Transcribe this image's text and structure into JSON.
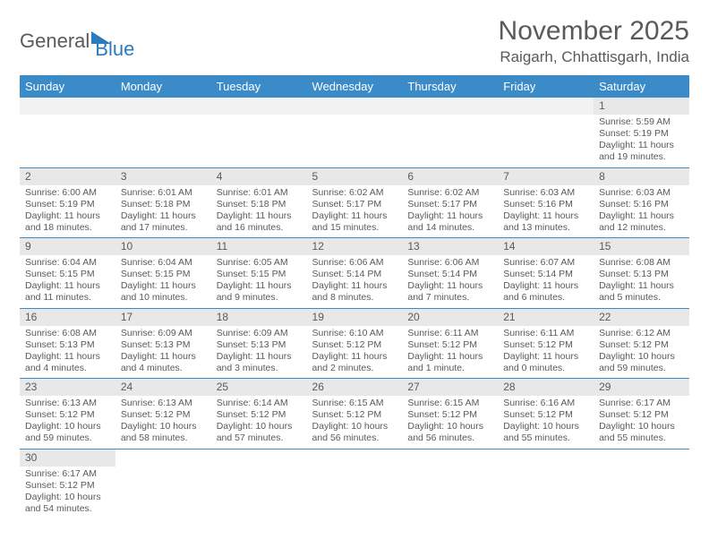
{
  "logo": {
    "part1": "General",
    "part2": "Blue"
  },
  "title": "November 2025",
  "location": "Raigarh, Chhattisgarh, India",
  "colors": {
    "header_bg": "#3b8bc9",
    "header_text": "#ffffff",
    "daynum_bg": "#e8e8e8",
    "text": "#5a5a5a",
    "rule": "#3b8bc9",
    "brand": "#2b7bbf"
  },
  "day_headers": [
    "Sunday",
    "Monday",
    "Tuesday",
    "Wednesday",
    "Thursday",
    "Friday",
    "Saturday"
  ],
  "weeks": [
    [
      null,
      null,
      null,
      null,
      null,
      null,
      {
        "n": "1",
        "sunrise": "5:59 AM",
        "sunset": "5:19 PM",
        "daylight": "11 hours and 19 minutes."
      }
    ],
    [
      {
        "n": "2",
        "sunrise": "6:00 AM",
        "sunset": "5:19 PM",
        "daylight": "11 hours and 18 minutes."
      },
      {
        "n": "3",
        "sunrise": "6:01 AM",
        "sunset": "5:18 PM",
        "daylight": "11 hours and 17 minutes."
      },
      {
        "n": "4",
        "sunrise": "6:01 AM",
        "sunset": "5:18 PM",
        "daylight": "11 hours and 16 minutes."
      },
      {
        "n": "5",
        "sunrise": "6:02 AM",
        "sunset": "5:17 PM",
        "daylight": "11 hours and 15 minutes."
      },
      {
        "n": "6",
        "sunrise": "6:02 AM",
        "sunset": "5:17 PM",
        "daylight": "11 hours and 14 minutes."
      },
      {
        "n": "7",
        "sunrise": "6:03 AM",
        "sunset": "5:16 PM",
        "daylight": "11 hours and 13 minutes."
      },
      {
        "n": "8",
        "sunrise": "6:03 AM",
        "sunset": "5:16 PM",
        "daylight": "11 hours and 12 minutes."
      }
    ],
    [
      {
        "n": "9",
        "sunrise": "6:04 AM",
        "sunset": "5:15 PM",
        "daylight": "11 hours and 11 minutes."
      },
      {
        "n": "10",
        "sunrise": "6:04 AM",
        "sunset": "5:15 PM",
        "daylight": "11 hours and 10 minutes."
      },
      {
        "n": "11",
        "sunrise": "6:05 AM",
        "sunset": "5:15 PM",
        "daylight": "11 hours and 9 minutes."
      },
      {
        "n": "12",
        "sunrise": "6:06 AM",
        "sunset": "5:14 PM",
        "daylight": "11 hours and 8 minutes."
      },
      {
        "n": "13",
        "sunrise": "6:06 AM",
        "sunset": "5:14 PM",
        "daylight": "11 hours and 7 minutes."
      },
      {
        "n": "14",
        "sunrise": "6:07 AM",
        "sunset": "5:14 PM",
        "daylight": "11 hours and 6 minutes."
      },
      {
        "n": "15",
        "sunrise": "6:08 AM",
        "sunset": "5:13 PM",
        "daylight": "11 hours and 5 minutes."
      }
    ],
    [
      {
        "n": "16",
        "sunrise": "6:08 AM",
        "sunset": "5:13 PM",
        "daylight": "11 hours and 4 minutes."
      },
      {
        "n": "17",
        "sunrise": "6:09 AM",
        "sunset": "5:13 PM",
        "daylight": "11 hours and 4 minutes."
      },
      {
        "n": "18",
        "sunrise": "6:09 AM",
        "sunset": "5:13 PM",
        "daylight": "11 hours and 3 minutes."
      },
      {
        "n": "19",
        "sunrise": "6:10 AM",
        "sunset": "5:12 PM",
        "daylight": "11 hours and 2 minutes."
      },
      {
        "n": "20",
        "sunrise": "6:11 AM",
        "sunset": "5:12 PM",
        "daylight": "11 hours and 1 minute."
      },
      {
        "n": "21",
        "sunrise": "6:11 AM",
        "sunset": "5:12 PM",
        "daylight": "11 hours and 0 minutes."
      },
      {
        "n": "22",
        "sunrise": "6:12 AM",
        "sunset": "5:12 PM",
        "daylight": "10 hours and 59 minutes."
      }
    ],
    [
      {
        "n": "23",
        "sunrise": "6:13 AM",
        "sunset": "5:12 PM",
        "daylight": "10 hours and 59 minutes."
      },
      {
        "n": "24",
        "sunrise": "6:13 AM",
        "sunset": "5:12 PM",
        "daylight": "10 hours and 58 minutes."
      },
      {
        "n": "25",
        "sunrise": "6:14 AM",
        "sunset": "5:12 PM",
        "daylight": "10 hours and 57 minutes."
      },
      {
        "n": "26",
        "sunrise": "6:15 AM",
        "sunset": "5:12 PM",
        "daylight": "10 hours and 56 minutes."
      },
      {
        "n": "27",
        "sunrise": "6:15 AM",
        "sunset": "5:12 PM",
        "daylight": "10 hours and 56 minutes."
      },
      {
        "n": "28",
        "sunrise": "6:16 AM",
        "sunset": "5:12 PM",
        "daylight": "10 hours and 55 minutes."
      },
      {
        "n": "29",
        "sunrise": "6:17 AM",
        "sunset": "5:12 PM",
        "daylight": "10 hours and 55 minutes."
      }
    ],
    [
      {
        "n": "30",
        "sunrise": "6:17 AM",
        "sunset": "5:12 PM",
        "daylight": "10 hours and 54 minutes."
      },
      null,
      null,
      null,
      null,
      null,
      null
    ]
  ],
  "labels": {
    "sunrise": "Sunrise: ",
    "sunset": "Sunset: ",
    "daylight": "Daylight: "
  }
}
